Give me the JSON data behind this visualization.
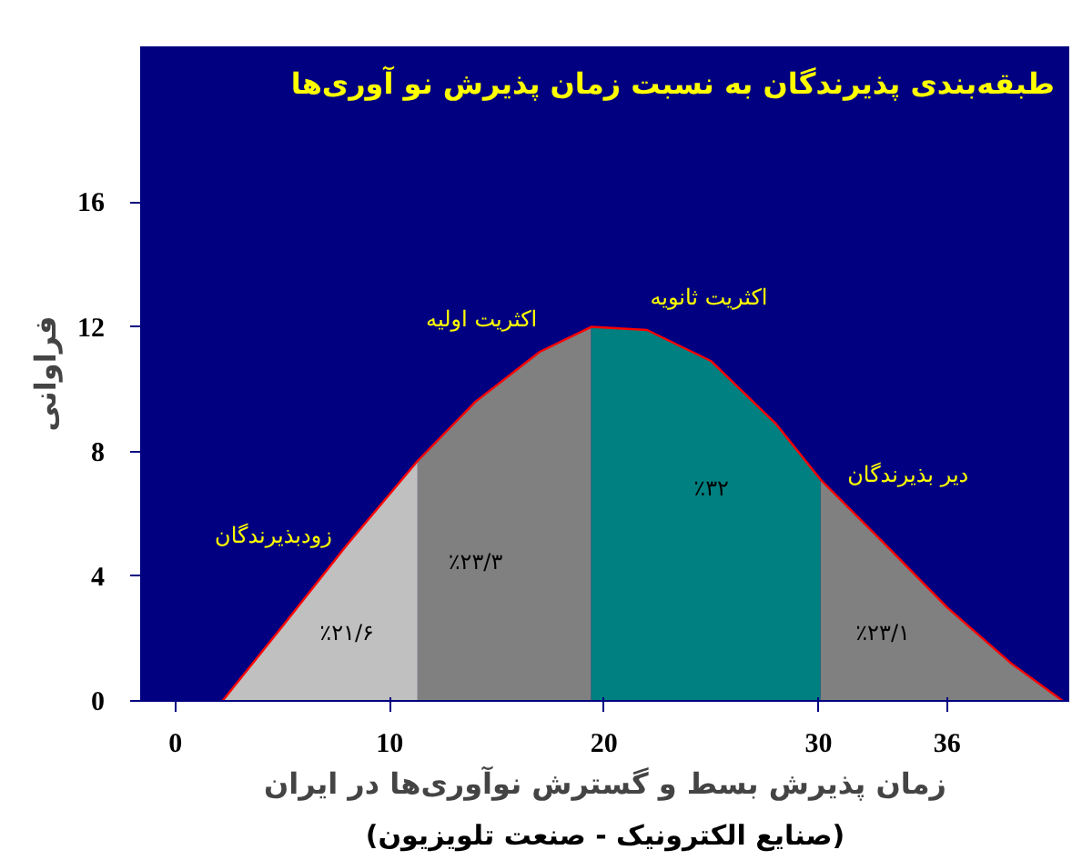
{
  "chart_data": {
    "type": "area",
    "title": "طبقه‌بندی پذیرندگان به نسبت زمان پذیرش نو آوری‌ها",
    "xlabel": "زمان پذیرش بسط و گسترش نوآوری‌ها در ایران",
    "ylabel": "فراوانی",
    "xlim": [
      -1.6,
      41.7
    ],
    "ylim": [
      0,
      21
    ],
    "xticks": [
      0,
      10,
      20,
      30,
      36
    ],
    "yticks": [
      0,
      4,
      8,
      12,
      16
    ],
    "grid": false,
    "series": [
      {
        "name": "زودبذیرندگان",
        "color": "#c0c0c0",
        "x": [
          2.2,
          5,
          8,
          11.3
        ],
        "values": [
          0,
          2.4,
          5.0,
          7.7
        ]
      },
      {
        "name": "اکثریت اولیه",
        "color": "#808080",
        "x": [
          11.3,
          14,
          17,
          19.4
        ],
        "values": [
          7.7,
          9.6,
          11.2,
          12
        ]
      },
      {
        "name": "اکثریت ثانویه",
        "color": "#008080",
        "x": [
          19.4,
          22,
          25,
          28,
          30.1
        ],
        "values": [
          12,
          11.9,
          10.9,
          8.9,
          7.1
        ]
      },
      {
        "name": "دیر بذیرندگان",
        "color": "#808080",
        "x": [
          30.1,
          33,
          36,
          39,
          41.4
        ],
        "values": [
          7.1,
          5.1,
          3.0,
          1.2,
          0
        ]
      },
      {
        "type": "line",
        "color": "#ff0000",
        "x": [
          2.2,
          5,
          8,
          11.3,
          14,
          17,
          19.4,
          22,
          25,
          28,
          30.1,
          33,
          36,
          39,
          41.4
        ],
        "values": [
          0,
          2.4,
          5.0,
          7.7,
          9.6,
          11.2,
          12,
          11.9,
          10.9,
          8.9,
          7.1,
          5.1,
          3.0,
          1.2,
          0
        ]
      }
    ],
    "annotations": [
      "٪۲۱/۶",
      "٪۲۳/۳",
      "٪۳۲",
      "٪۲۳/۱",
      "(صنایع الکترونیک - صنعت تلویزیون)"
    ]
  }
}
